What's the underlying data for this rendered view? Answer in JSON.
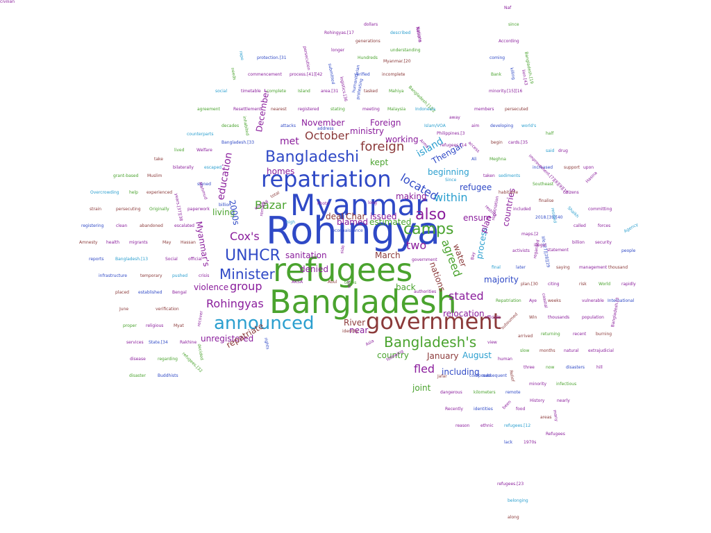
{
  "palette": {
    "blue": "#2f49c6",
    "green": "#4aa32e",
    "purple": "#8a1d9c",
    "brown": "#8b3a3a",
    "cyan": "#2b9fcf"
  },
  "words": [
    {
      "t": "Rohingya",
      "c": "blue"
    },
    {
      "t": "refugees",
      "c": "green"
    },
    {
      "t": "Bangladesh",
      "c": "green"
    },
    {
      "t": "Myanmar",
      "c": "blue"
    },
    {
      "t": "government",
      "c": "brown"
    },
    {
      "t": "repatriation",
      "c": "blue"
    },
    {
      "t": "announced",
      "c": "cyan"
    },
    {
      "t": "Bangladeshi",
      "c": "blue"
    },
    {
      "t": "camps",
      "c": "green"
    },
    {
      "t": "also",
      "c": "purple"
    },
    {
      "t": "UNHCR",
      "c": "blue"
    },
    {
      "t": "Bangladesh's",
      "c": "green"
    },
    {
      "t": "Minister",
      "c": "blue"
    },
    {
      "t": "Cox's",
      "c": "purple"
    },
    {
      "t": "foreign",
      "c": "brown"
    },
    {
      "t": "October",
      "c": "brown"
    },
    {
      "t": "two",
      "c": "purple"
    },
    {
      "t": "agreed",
      "c": "green"
    },
    {
      "t": "group",
      "c": "purple"
    },
    {
      "t": "fled",
      "c": "purple"
    },
    {
      "t": "stated",
      "c": "purple"
    },
    {
      "t": "Rohingyas",
      "c": "purple"
    },
    {
      "t": "Bazar",
      "c": "green"
    },
    {
      "t": "located",
      "c": "blue"
    },
    {
      "t": "within",
      "c": "cyan"
    },
    {
      "t": "met",
      "c": "purple"
    },
    {
      "t": "education",
      "c": "purple"
    },
    {
      "t": "island",
      "c": "cyan"
    },
    {
      "t": "kept",
      "c": "green"
    },
    {
      "t": "Thengar",
      "c": "blue"
    },
    {
      "t": "water",
      "c": "brown"
    },
    {
      "t": "majority",
      "c": "blue"
    },
    {
      "t": "countries",
      "c": "purple"
    },
    {
      "t": "process",
      "c": "cyan"
    },
    {
      "t": "nations",
      "c": "brown"
    },
    {
      "t": "plan",
      "c": "purple"
    },
    {
      "t": "ensure",
      "c": "purple"
    },
    {
      "t": "refugee",
      "c": "blue"
    },
    {
      "t": "beginning",
      "c": "cyan"
    },
    {
      "t": "making",
      "c": "purple"
    },
    {
      "t": "estimated",
      "c": "green"
    },
    {
      "t": "blamed",
      "c": "purple"
    },
    {
      "t": "deal",
      "c": "brown"
    },
    {
      "t": "issued",
      "c": "purple"
    },
    {
      "t": "Char",
      "c": "brown"
    },
    {
      "t": "living",
      "c": "green"
    },
    {
      "t": "2000s",
      "c": "blue"
    },
    {
      "t": "sanitation",
      "c": "purple"
    },
    {
      "t": "March",
      "c": "brown"
    },
    {
      "t": "back",
      "c": "green"
    },
    {
      "t": "denied",
      "c": "purple"
    },
    {
      "t": "violence",
      "c": "purple"
    },
    {
      "t": "relocation",
      "c": "purple"
    },
    {
      "t": "River",
      "c": "brown"
    },
    {
      "t": "near",
      "c": "purple"
    },
    {
      "t": "unregistered",
      "c": "purple"
    },
    {
      "t": "repatriate",
      "c": "brown"
    },
    {
      "t": "country",
      "c": "green"
    },
    {
      "t": "January",
      "c": "brown"
    },
    {
      "t": "August",
      "c": "cyan"
    },
    {
      "t": "including",
      "c": "blue"
    },
    {
      "t": "joint",
      "c": "green"
    },
    {
      "t": "November",
      "c": "purple"
    },
    {
      "t": "Foreign",
      "c": "purple"
    },
    {
      "t": "ministry",
      "c": "purple"
    },
    {
      "t": "working",
      "c": "purple"
    },
    {
      "t": "December",
      "c": "purple"
    },
    {
      "t": "homes",
      "c": "purple"
    },
    {
      "t": "Myanmar's",
      "c": "purple"
    },
    {
      "t": "Naf",
      "c": "purple"
    },
    {
      "t": "Rohingyas.[17",
      "c": "purple"
    },
    {
      "t": "dollars",
      "c": "purple"
    },
    {
      "t": "described",
      "c": "cyan"
    },
    {
      "t": "Nations",
      "c": "purple"
    },
    {
      "t": "since",
      "c": "green"
    },
    {
      "t": "generations",
      "c": "brown"
    },
    {
      "t": "According",
      "c": "purple"
    },
    {
      "t": "longer",
      "c": "purple"
    },
    {
      "t": "understanding",
      "c": "green"
    },
    {
      "t": "persecution",
      "c": "purple"
    },
    {
      "t": "rape",
      "c": "cyan"
    },
    {
      "t": "protection.[31",
      "c": "blue"
    },
    {
      "t": "Hundreds",
      "c": "green"
    },
    {
      "t": "coming",
      "c": "blue"
    },
    {
      "t": "Myanmar.[20",
      "c": "brown"
    },
    {
      "t": "Bangladesh.[19",
      "c": "green"
    },
    {
      "t": "needs",
      "c": "green"
    },
    {
      "t": "commencement",
      "c": "purple"
    },
    {
      "t": "process.[41][42",
      "c": "purple"
    },
    {
      "t": "submitted",
      "c": "blue"
    },
    {
      "t": "verified",
      "c": "blue"
    },
    {
      "t": "incomplete",
      "c": "brown"
    },
    {
      "t": "Bank",
      "c": "green"
    },
    {
      "t": "killing",
      "c": "blue"
    },
    {
      "t": "social",
      "c": "cyan"
    },
    {
      "t": "timetable",
      "c": "purple"
    },
    {
      "t": "complete",
      "c": "green"
    },
    {
      "t": "Island",
      "c": "green"
    },
    {
      "t": "area.[31",
      "c": "purple"
    },
    {
      "t": "tasked",
      "c": "brown"
    },
    {
      "t": "Mahiya",
      "c": "green"
    },
    {
      "t": "Bangladesh.[1][2",
      "c": "green"
    },
    {
      "t": "minority.[15][16",
      "c": "purple"
    },
    {
      "t": "logistics.[36",
      "c": "purple"
    },
    {
      "t": "agreement",
      "c": "green"
    },
    {
      "t": "Resettlement",
      "c": "purple"
    },
    {
      "t": "nearest",
      "c": "brown"
    },
    {
      "t": "registered",
      "c": "purple"
    },
    {
      "t": "stating",
      "c": "green"
    },
    {
      "t": "meeting",
      "c": "purple"
    },
    {
      "t": "Malaysia",
      "c": "green"
    },
    {
      "t": "Indonesia",
      "c": "cyan"
    },
    {
      "t": "members",
      "c": "purple"
    },
    {
      "t": "persecuted",
      "c": "brown"
    },
    {
      "t": "decades",
      "c": "green"
    },
    {
      "t": "inhabited",
      "c": "green"
    },
    {
      "t": "attacks",
      "c": "blue"
    },
    {
      "t": "address",
      "c": "blue"
    },
    {
      "t": "Islam/VOA",
      "c": "cyan"
    },
    {
      "t": "aim",
      "c": "purple"
    },
    {
      "t": "developing",
      "c": "blue"
    },
    {
      "t": "world's",
      "c": "cyan"
    },
    {
      "t": "away",
      "c": "purple"
    },
    {
      "t": "Philippines.[3",
      "c": "purple"
    },
    {
      "t": "half",
      "c": "green"
    },
    {
      "t": "counterparts",
      "c": "cyan"
    },
    {
      "t": "Bangladesh.[33",
      "c": "blue"
    },
    {
      "t": "refugees.[14",
      "c": "purple"
    },
    {
      "t": "begin",
      "c": "brown"
    },
    {
      "t": "cards.[35",
      "c": "purple"
    },
    {
      "t": "said",
      "c": "cyan"
    },
    {
      "t": "drug",
      "c": "purple"
    },
    {
      "t": "lived",
      "c": "green"
    },
    {
      "t": "Welfare",
      "c": "purple"
    },
    {
      "t": "Meghna",
      "c": "green"
    },
    {
      "t": "take",
      "c": "brown"
    },
    {
      "t": "bilaterally",
      "c": "purple"
    },
    {
      "t": "escaped",
      "c": "cyan"
    },
    {
      "t": "Ali",
      "c": "blue"
    },
    {
      "t": "increased",
      "c": "blue"
    },
    {
      "t": "support",
      "c": "brown"
    },
    {
      "t": "upon",
      "c": "purple"
    },
    {
      "t": "grant-based",
      "c": "green"
    },
    {
      "t": "Muslim",
      "c": "brown"
    },
    {
      "t": "taken",
      "c": "purple"
    },
    {
      "t": "sediments",
      "c": "cyan"
    },
    {
      "t": "signed",
      "c": "blue"
    },
    {
      "t": "Since",
      "c": "cyan"
    },
    {
      "t": "Southeast",
      "c": "green"
    },
    {
      "t": "citizens",
      "c": "purple"
    },
    {
      "t": "Overcrowding",
      "c": "cyan"
    },
    {
      "t": "help",
      "c": "green"
    },
    {
      "t": "experienced",
      "c": "brown"
    },
    {
      "t": "habitable",
      "c": "brown"
    },
    {
      "t": "finalise",
      "c": "brown"
    },
    {
      "t": "strain",
      "c": "brown"
    },
    {
      "t": "persecuting",
      "c": "brown"
    },
    {
      "t": "Originally",
      "c": "green"
    },
    {
      "t": "billion",
      "c": "blue"
    },
    {
      "t": "included",
      "c": "purple"
    },
    {
      "t": "committing",
      "c": "purple"
    },
    {
      "t": "registering",
      "c": "blue"
    },
    {
      "t": "clean",
      "c": "purple"
    },
    {
      "t": "abandoned",
      "c": "brown"
    },
    {
      "t": "escalated",
      "c": "purple"
    },
    {
      "t": "2018.[39][40",
      "c": "blue"
    },
    {
      "t": "called",
      "c": "purple"
    },
    {
      "t": "forces",
      "c": "purple"
    },
    {
      "t": "Amnesty",
      "c": "brown"
    },
    {
      "t": "health",
      "c": "purple"
    },
    {
      "t": "migrants",
      "c": "purple"
    },
    {
      "t": "May",
      "c": "brown"
    },
    {
      "t": "Hassan",
      "c": "brown"
    },
    {
      "t": "maps.[2",
      "c": "purple"
    },
    {
      "t": "billion",
      "c": "purple"
    },
    {
      "t": "security",
      "c": "purple"
    },
    {
      "t": "people",
      "c": "blue"
    },
    {
      "t": "reports",
      "c": "blue"
    },
    {
      "t": "Bangladesh.[13",
      "c": "cyan"
    },
    {
      "t": "Social",
      "c": "purple"
    },
    {
      "t": "official",
      "c": "purple"
    },
    {
      "t": "activists",
      "c": "purple"
    },
    {
      "t": "infrastructure",
      "c": "blue"
    },
    {
      "t": "temporary",
      "c": "brown"
    },
    {
      "t": "pushed",
      "c": "cyan"
    },
    {
      "t": "crisis",
      "c": "purple"
    },
    {
      "t": "final",
      "c": "cyan"
    },
    {
      "t": "later",
      "c": "blue"
    },
    {
      "t": "saying",
      "c": "brown"
    },
    {
      "t": "management",
      "c": "purple"
    },
    {
      "t": "thousand",
      "c": "brown"
    },
    {
      "t": "placed",
      "c": "brown"
    },
    {
      "t": "established",
      "c": "blue"
    },
    {
      "t": "Bengal",
      "c": "purple"
    },
    {
      "t": "plan.[30",
      "c": "brown"
    },
    {
      "t": "citing",
      "c": "purple"
    },
    {
      "t": "risk",
      "c": "brown"
    },
    {
      "t": "World",
      "c": "green"
    },
    {
      "t": "rapidly",
      "c": "purple"
    },
    {
      "t": "June",
      "c": "brown"
    },
    {
      "t": "verification",
      "c": "brown"
    },
    {
      "t": "Repatriation",
      "c": "green"
    },
    {
      "t": "Aye",
      "c": "purple"
    },
    {
      "t": "weeks",
      "c": "brown"
    },
    {
      "t": "vulnerable",
      "c": "purple"
    },
    {
      "t": "International",
      "c": "blue"
    },
    {
      "t": "proper",
      "c": "green"
    },
    {
      "t": "religious",
      "c": "purple"
    },
    {
      "t": "Myat",
      "c": "brown"
    },
    {
      "t": "officials",
      "c": "purple"
    },
    {
      "t": "Win",
      "c": "brown"
    },
    {
      "t": "thousands",
      "c": "purple"
    },
    {
      "t": "population",
      "c": "purple"
    },
    {
      "t": "services",
      "c": "purple"
    },
    {
      "t": "State.[34",
      "c": "blue"
    },
    {
      "t": "Rakhine",
      "c": "purple"
    },
    {
      "t": "returning",
      "c": "green"
    },
    {
      "t": "recent",
      "c": "purple"
    },
    {
      "t": "burning",
      "c": "brown"
    },
    {
      "t": "disease",
      "c": "purple"
    },
    {
      "t": "regarding",
      "c": "green"
    },
    {
      "t": "refugees.[32",
      "c": "green"
    },
    {
      "t": "view",
      "c": "purple"
    },
    {
      "t": "slow",
      "c": "green"
    },
    {
      "t": "months",
      "c": "brown"
    },
    {
      "t": "natural",
      "c": "purple"
    },
    {
      "t": "extrajudicial",
      "c": "purple"
    },
    {
      "t": "disaster",
      "c": "green"
    },
    {
      "t": "Buddhists",
      "c": "blue"
    },
    {
      "t": "human",
      "c": "purple"
    },
    {
      "t": "three",
      "c": "purple"
    },
    {
      "t": "now",
      "c": "green"
    },
    {
      "t": "disasters",
      "c": "blue"
    },
    {
      "t": "hill",
      "c": "purple"
    },
    {
      "t": "subsequent",
      "c": "blue"
    },
    {
      "t": "minority",
      "c": "purple"
    },
    {
      "t": "infectious",
      "c": "green"
    },
    {
      "t": "dangerous",
      "c": "purple"
    },
    {
      "t": "kilometers",
      "c": "green"
    },
    {
      "t": "remote",
      "c": "blue"
    },
    {
      "t": "History",
      "c": "purple"
    },
    {
      "t": "nearly",
      "c": "purple"
    },
    {
      "t": "Recently",
      "c": "purple"
    },
    {
      "t": "identities",
      "c": "blue"
    },
    {
      "t": "food",
      "c": "purple"
    },
    {
      "t": "areas",
      "c": "brown"
    },
    {
      "t": "reason",
      "c": "purple"
    },
    {
      "t": "ethnic",
      "c": "purple"
    },
    {
      "t": "refugees.[12",
      "c": "cyan"
    },
    {
      "t": "Refugees",
      "c": "purple"
    },
    {
      "t": "lack",
      "c": "blue"
    },
    {
      "t": "1970s",
      "c": "purple"
    },
    {
      "t": "refugees.[23",
      "c": "purple"
    },
    {
      "t": "belonging",
      "c": "cyan"
    },
    {
      "t": "along",
      "c": "brown"
    },
    {
      "t": "Nations",
      "c": "purple"
    },
    {
      "t": "total",
      "c": "brown"
    },
    {
      "t": "will.[18",
      "c": "purple"
    },
    {
      "t": "Mahmud",
      "c": "purple"
    },
    {
      "t": "years.[37][38",
      "c": "purple"
    },
    {
      "t": "paperwork",
      "c": "purple"
    },
    {
      "t": "high",
      "c": "cyan"
    },
    {
      "t": "Photo",
      "c": "purple"
    },
    {
      "t": "long",
      "c": "purple"
    },
    {
      "t": "government",
      "c": "purple"
    },
    {
      "t": "authorities",
      "c": "purple"
    },
    {
      "t": "recover",
      "c": "purple"
    },
    {
      "t": "decided",
      "c": "green"
    },
    {
      "t": "rights",
      "c": "blue"
    },
    {
      "t": "identity",
      "c": "brown"
    },
    {
      "t": "Asia",
      "c": "purple"
    },
    {
      "t": "following",
      "c": "purple"
    },
    {
      "t": "Jafar",
      "c": "brown"
    },
    {
      "t": "composed",
      "c": "blue"
    },
    {
      "t": "subsumed",
      "c": "brown"
    },
    {
      "t": "arrived",
      "c": "brown"
    },
    {
      "t": "Relief",
      "c": "brown"
    },
    {
      "t": "been",
      "c": "purple"
    },
    {
      "t": "many",
      "c": "purple"
    },
    {
      "t": "coastal",
      "c": "purple"
    },
    {
      "t": "Bangladesh.[3",
      "c": "purple"
    },
    {
      "t": "life.[27][28][29",
      "c": "blue"
    },
    {
      "t": "statement",
      "c": "purple"
    },
    {
      "t": "regarded",
      "c": "purple"
    },
    {
      "t": "repatriation",
      "c": "purple"
    },
    {
      "t": "Shaikh",
      "c": "cyan"
    },
    {
      "t": "Hasina",
      "c": "purple"
    },
    {
      "t": "Agency",
      "c": "cyan"
    },
    {
      "t": "resided",
      "c": "cyan"
    },
    {
      "t": "illegal",
      "c": "purple"
    },
    {
      "t": "access",
      "c": "purple"
    },
    {
      "t": "Arms",
      "c": "purple"
    },
    {
      "t": "AKSA",
      "c": "purple"
    },
    {
      "t": "Abul",
      "c": "brown"
    },
    {
      "t": "bus",
      "c": "purple"
    },
    {
      "t": "side",
      "c": "purple"
    },
    {
      "t": "Bay",
      "c": "purple"
    },
    {
      "t": "lion.[43",
      "c": "purple"
    },
    {
      "t": "improvement.[7][8][9][10",
      "c": "purple"
    },
    {
      "t": "terms",
      "c": "green"
    },
    {
      "t": "restrict",
      "c": "purple"
    },
    {
      "t": "protesting",
      "c": "blue"
    },
    {
      "t": "humanitarian",
      "c": "blue"
    },
    {
      "t": "reconnaissance",
      "c": "blue"
    },
    {
      "t": "remain",
      "c": "purple"
    },
    {
      "t": "civilian",
      "c": "purple"
    }
  ]
}
